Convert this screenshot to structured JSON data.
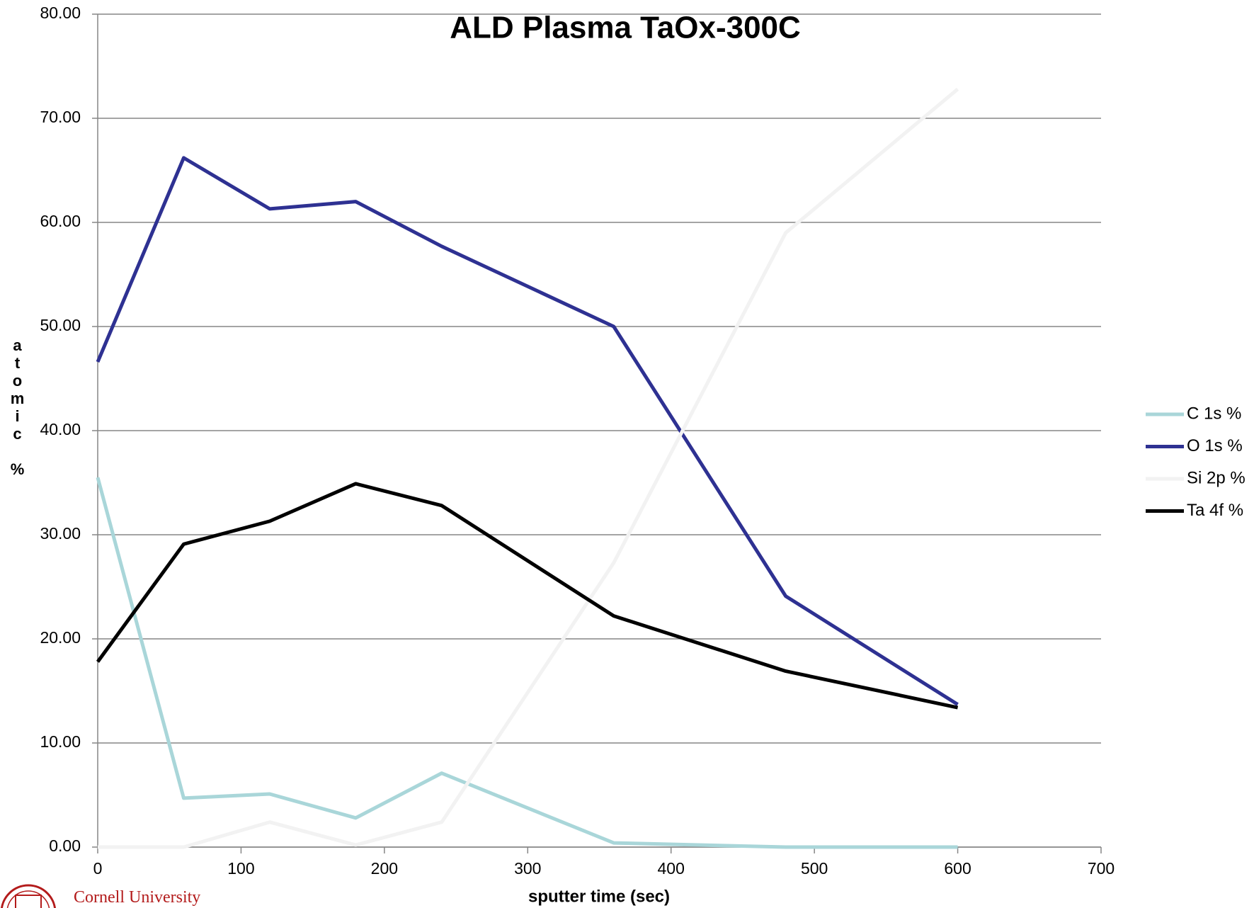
{
  "chart_data": {
    "type": "line",
    "title": "ALD Plasma TaOx-300C",
    "xlabel": "sputter time (sec)",
    "ylabel": "atomic %",
    "x": [
      0,
      60,
      120,
      180,
      240,
      360,
      480,
      600
    ],
    "series": [
      {
        "name": "C 1s %",
        "color": "#a9d6d9",
        "values": [
          35.5,
          4.7,
          5.1,
          2.8,
          7.1,
          0.4,
          0,
          0
        ]
      },
      {
        "name": "O 1s %",
        "color": "#2e3192",
        "values": [
          46.6,
          66.2,
          61.3,
          62.0,
          57.7,
          50.0,
          24.1,
          13.7
        ]
      },
      {
        "name": "Si 2p %",
        "color": "#f2f2f2",
        "values": [
          0,
          0,
          2.4,
          0.2,
          2.4,
          27.3,
          59.0,
          72.8
        ]
      },
      {
        "name": "Ta 4f %",
        "color": "#000000",
        "values": [
          17.8,
          29.1,
          31.3,
          34.9,
          32.8,
          22.2,
          16.9,
          13.4
        ]
      }
    ],
    "xlim": [
      0,
      700
    ],
    "xticks": [
      0,
      100,
      200,
      300,
      400,
      500,
      600,
      700
    ],
    "ylim": [
      0,
      80
    ],
    "yticks": [
      {
        "value": 0,
        "label": "0.00"
      },
      {
        "value": 10,
        "label": "10.00"
      },
      {
        "value": 20,
        "label": "20.00"
      },
      {
        "value": 30,
        "label": "30.00"
      },
      {
        "value": 40,
        "label": "40.00"
      },
      {
        "value": 50,
        "label": "50.00"
      },
      {
        "value": 60,
        "label": "60.00"
      },
      {
        "value": 70,
        "label": "70.00"
      },
      {
        "value": 80,
        "label": "80.00"
      }
    ],
    "grid": true,
    "legend": "right"
  },
  "footer": {
    "logo_text": "Cornell University"
  }
}
